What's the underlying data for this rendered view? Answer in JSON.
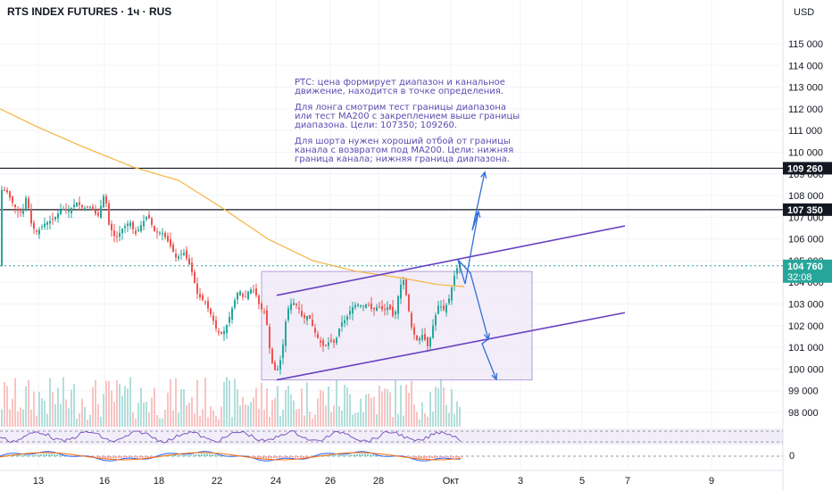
{
  "header": {
    "title": "RTS INDEX FUTURES · 1ч · RUS",
    "currency": "USD"
  },
  "colors": {
    "up": "#26a69a",
    "down": "#ef5350",
    "ma": "#f5b43c",
    "channel": "#6a3fc2",
    "range_fill": "#ede7f6",
    "range_border": "#b39ddb",
    "arrow": "#2f6fd6",
    "level": "#131722",
    "price_badge": "#26a69a"
  },
  "chart_data": {
    "type": "candlestick",
    "title": "RTS INDEX FUTURES · 1ч · RUS",
    "yaxis": {
      "unit": "USD",
      "ticks": [
        "115 000",
        "114 000",
        "113 000",
        "112 000",
        "111 000",
        "110 000",
        "109 000",
        "108 000",
        "107 000",
        "106 000",
        "105 000",
        "104 000",
        "103 000",
        "102 000",
        "101 000",
        "100 000",
        "99 000",
        "98 000"
      ],
      "range": [
        97500,
        116000
      ]
    },
    "xaxis": {
      "ticks": [
        "13",
        "16",
        "18",
        "22",
        "24",
        "26",
        "28",
        "Окт",
        "3",
        "5",
        "7",
        "9"
      ]
    },
    "price_path": [
      [
        0,
        108300
      ],
      [
        8,
        108200
      ],
      [
        14,
        107700
      ],
      [
        20,
        107300
      ],
      [
        26,
        107200
      ],
      [
        30,
        108000
      ],
      [
        36,
        106600
      ],
      [
        42,
        106300
      ],
      [
        50,
        106700
      ],
      [
        60,
        106900
      ],
      [
        70,
        107400
      ],
      [
        78,
        107300
      ],
      [
        86,
        107700
      ],
      [
        94,
        107400
      ],
      [
        102,
        107500
      ],
      [
        110,
        107000
      ],
      [
        118,
        108200
      ],
      [
        122,
        106700
      ],
      [
        130,
        106000
      ],
      [
        138,
        106500
      ],
      [
        146,
        106800
      ],
      [
        152,
        106200
      ],
      [
        158,
        106600
      ],
      [
        166,
        107100
      ],
      [
        174,
        106300
      ],
      [
        182,
        106300
      ],
      [
        190,
        105800
      ],
      [
        198,
        105100
      ],
      [
        206,
        105400
      ],
      [
        214,
        104700
      ],
      [
        222,
        103400
      ],
      [
        230,
        103100
      ],
      [
        238,
        102400
      ],
      [
        244,
        101700
      ],
      [
        250,
        101600
      ],
      [
        256,
        102200
      ],
      [
        262,
        103000
      ],
      [
        268,
        103700
      ],
      [
        274,
        103200
      ],
      [
        280,
        103700
      ],
      [
        286,
        103600
      ],
      [
        292,
        102800
      ],
      [
        298,
        102600
      ],
      [
        304,
        100400
      ],
      [
        310,
        99800
      ],
      [
        316,
        100600
      ],
      [
        322,
        102700
      ],
      [
        328,
        103100
      ],
      [
        334,
        102900
      ],
      [
        340,
        102300
      ],
      [
        346,
        102500
      ],
      [
        352,
        101800
      ],
      [
        358,
        101300
      ],
      [
        364,
        101000
      ],
      [
        370,
        101300
      ],
      [
        376,
        101200
      ],
      [
        382,
        102100
      ],
      [
        388,
        102300
      ],
      [
        394,
        102800
      ],
      [
        400,
        103000
      ],
      [
        406,
        102900
      ],
      [
        412,
        103000
      ],
      [
        418,
        102700
      ],
      [
        424,
        102900
      ],
      [
        430,
        102700
      ],
      [
        436,
        102900
      ],
      [
        442,
        102300
      ],
      [
        448,
        103700
      ],
      [
        452,
        104200
      ],
      [
        456,
        103300
      ],
      [
        462,
        101800
      ],
      [
        468,
        101300
      ],
      [
        474,
        101600
      ],
      [
        480,
        101000
      ],
      [
        486,
        102100
      ],
      [
        492,
        103000
      ],
      [
        498,
        102700
      ],
      [
        504,
        103300
      ],
      [
        510,
        104400
      ],
      [
        515,
        104900
      ],
      [
        520,
        104760
      ]
    ],
    "ma200": [
      [
        0,
        112000
      ],
      [
        40,
        111200
      ],
      [
        90,
        110300
      ],
      [
        150,
        109300
      ],
      [
        200,
        108700
      ],
      [
        250,
        107400
      ],
      [
        300,
        106000
      ],
      [
        350,
        105000
      ],
      [
        400,
        104500
      ],
      [
        450,
        104200
      ],
      [
        490,
        103900
      ],
      [
        520,
        103800
      ]
    ],
    "volume_note": "histogram bars shown along the bottom of the price pane",
    "annotations": {
      "levels": [
        {
          "value": 109260,
          "label": "109 260"
        },
        {
          "value": 107350,
          "label": "107 350"
        }
      ],
      "last_price": {
        "value": 104760,
        "label": "104 760",
        "timer": "32:08"
      },
      "range_box": {
        "top": 104500,
        "bottom": 99500
      },
      "channel": {
        "upper": [
          [
            310,
            103400
          ],
          [
            700,
            106600
          ]
        ],
        "lower": [
          [
            310,
            99500
          ],
          [
            700,
            102600
          ]
        ]
      },
      "text": [
        "РТС: цена формирует диапазон и канальное",
        "движение, находится в точке определения.",
        "",
        "Для лонга смотрим тест границы диапазона",
        "или тест МА200 с закреплением выше границы",
        "диапазона. Цели: 107350; 109260.",
        "",
        "Для шорта нужен хороший отбой от границы",
        "канала с возвратом под МА200. Цели: нижняя",
        "граница канала; нижняя граница диапазона."
      ]
    },
    "oscillators": {
      "rsi_pane": "compact RSI pane",
      "macd_pane": "compact MACD pane",
      "macd_zero_label": "0"
    }
  }
}
